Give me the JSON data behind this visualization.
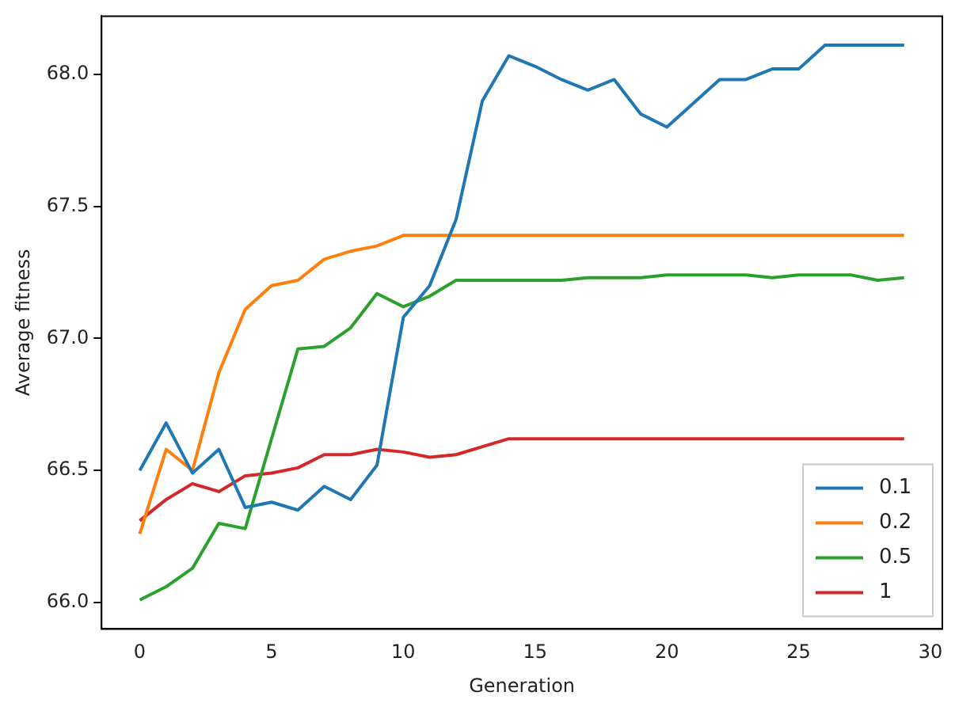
{
  "chart_data": {
    "type": "line",
    "xlabel": "Generation",
    "ylabel": "Average fitness",
    "x": [
      0,
      1,
      2,
      3,
      4,
      5,
      6,
      7,
      8,
      9,
      10,
      11,
      12,
      13,
      14,
      15,
      16,
      17,
      18,
      19,
      20,
      21,
      22,
      23,
      24,
      25,
      26,
      27,
      28,
      29
    ],
    "xlim": [
      -1.45,
      30.45
    ],
    "xticks": [
      0,
      5,
      10,
      15,
      20,
      25,
      30
    ],
    "ylim": [
      65.9,
      68.22
    ],
    "yticks": [
      {
        "value": 66,
        "label": "66.0"
      },
      {
        "value": 66.5,
        "label": "66.5"
      },
      {
        "value": 67,
        "label": "67.0"
      },
      {
        "value": 67.5,
        "label": "67.5"
      },
      {
        "value": 68,
        "label": "68.0"
      }
    ],
    "grid": false,
    "legend": "bottom right",
    "marker": "none",
    "line_style": "solid",
    "series": [
      {
        "name": "0.1",
        "color": "#1f77b4",
        "values": [
          66.5,
          66.68,
          66.49,
          66.58,
          66.36,
          66.38,
          66.35,
          66.44,
          66.39,
          66.52,
          67.08,
          67.2,
          67.45,
          67.9,
          68.07,
          68.03,
          67.98,
          67.94,
          67.98,
          67.85,
          67.8,
          67.89,
          67.98,
          67.98,
          68.02,
          68.02,
          68.11,
          68.11,
          68.11,
          68.11
        ]
      },
      {
        "name": "0.2",
        "color": "#ff7f0e",
        "values": [
          66.26,
          66.58,
          66.5,
          66.87,
          67.11,
          67.2,
          67.22,
          67.3,
          67.33,
          67.35,
          67.39,
          67.39,
          67.39,
          67.39,
          67.39,
          67.39,
          67.39,
          67.39,
          67.39,
          67.39,
          67.39,
          67.39,
          67.39,
          67.39,
          67.39,
          67.39,
          67.39,
          67.39,
          67.39,
          67.39
        ]
      },
      {
        "name": "0.5",
        "color": "#2ca02c",
        "values": [
          66.01,
          66.06,
          66.13,
          66.3,
          66.28,
          66.62,
          66.96,
          66.97,
          67.04,
          67.17,
          67.12,
          67.16,
          67.22,
          67.22,
          67.22,
          67.22,
          67.22,
          67.23,
          67.23,
          67.23,
          67.24,
          67.24,
          67.24,
          67.24,
          67.23,
          67.24,
          67.24,
          67.24,
          67.22,
          67.23
        ]
      },
      {
        "name": "1",
        "color": "#d62728",
        "values": [
          66.31,
          66.39,
          66.45,
          66.42,
          66.48,
          66.49,
          66.51,
          66.56,
          66.56,
          66.58,
          66.57,
          66.55,
          66.56,
          66.59,
          66.62,
          66.62,
          66.62,
          66.62,
          66.62,
          66.62,
          66.62,
          66.62,
          66.62,
          66.62,
          66.62,
          66.62,
          66.62,
          66.62,
          66.62,
          66.62
        ]
      }
    ]
  }
}
